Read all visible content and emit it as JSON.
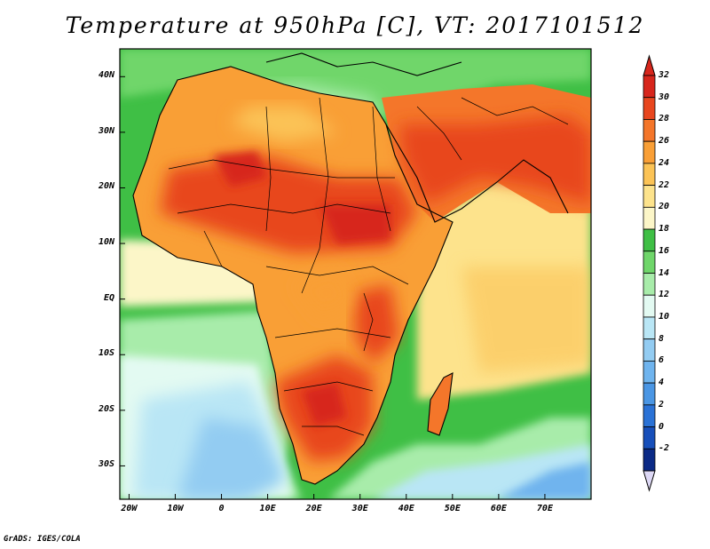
{
  "title": "Temperature at 950hPa [C], VT: 2017101512",
  "credit": "GrADS: IGES/COLA",
  "map": {
    "lon_range": [
      -22,
      80
    ],
    "lat_range": [
      -36,
      45
    ],
    "lat_labels": [
      {
        "lat": 40,
        "text": "40N"
      },
      {
        "lat": 30,
        "text": "30N"
      },
      {
        "lat": 20,
        "text": "20N"
      },
      {
        "lat": 10,
        "text": "10N"
      },
      {
        "lat": 0,
        "text": "EQ"
      },
      {
        "lat": -10,
        "text": "10S"
      },
      {
        "lat": -20,
        "text": "20S"
      },
      {
        "lat": -30,
        "text": "30S"
      }
    ],
    "lon_labels": [
      {
        "lon": -20,
        "text": "20W"
      },
      {
        "lon": -10,
        "text": "10W"
      },
      {
        "lon": 0,
        "text": "0"
      },
      {
        "lon": 10,
        "text": "10E"
      },
      {
        "lon": 20,
        "text": "20E"
      },
      {
        "lon": 30,
        "text": "30E"
      },
      {
        "lon": 40,
        "text": "40E"
      },
      {
        "lon": 50,
        "text": "50E"
      },
      {
        "lon": 60,
        "text": "60E"
      },
      {
        "lon": 70,
        "text": "70E"
      }
    ]
  },
  "colorbar": {
    "levels": [
      {
        "label": "32",
        "color": "#d7261c"
      },
      {
        "label": "30",
        "color": "#e8461e"
      },
      {
        "label": "28",
        "color": "#f4762a"
      },
      {
        "label": "26",
        "color": "#f99f36"
      },
      {
        "label": "24",
        "color": "#fbc356"
      },
      {
        "label": "22",
        "color": "#fde38c"
      },
      {
        "label": "20",
        "color": "#fcf6c8"
      },
      {
        "label": "18",
        "color": "#3fbf45"
      },
      {
        "label": "16",
        "color": "#6fd66a"
      },
      {
        "label": "14",
        "color": "#a8ecaa"
      },
      {
        "label": "12",
        "color": "#e3faf2"
      },
      {
        "label": "10",
        "color": "#b9e6f5"
      },
      {
        "label": "8",
        "color": "#93ccf2"
      },
      {
        "label": "6",
        "color": "#6fb4ee"
      },
      {
        "label": "4",
        "color": "#4a96e4"
      },
      {
        "label": "2",
        "color": "#2a72d6"
      },
      {
        "label": "0",
        "color": "#174fba"
      },
      {
        "label": "-2",
        "color": "#0b2a86"
      }
    ],
    "top_arrow_color": "#d7261c",
    "bottom_arrow_color": "#ddd8f5"
  }
}
